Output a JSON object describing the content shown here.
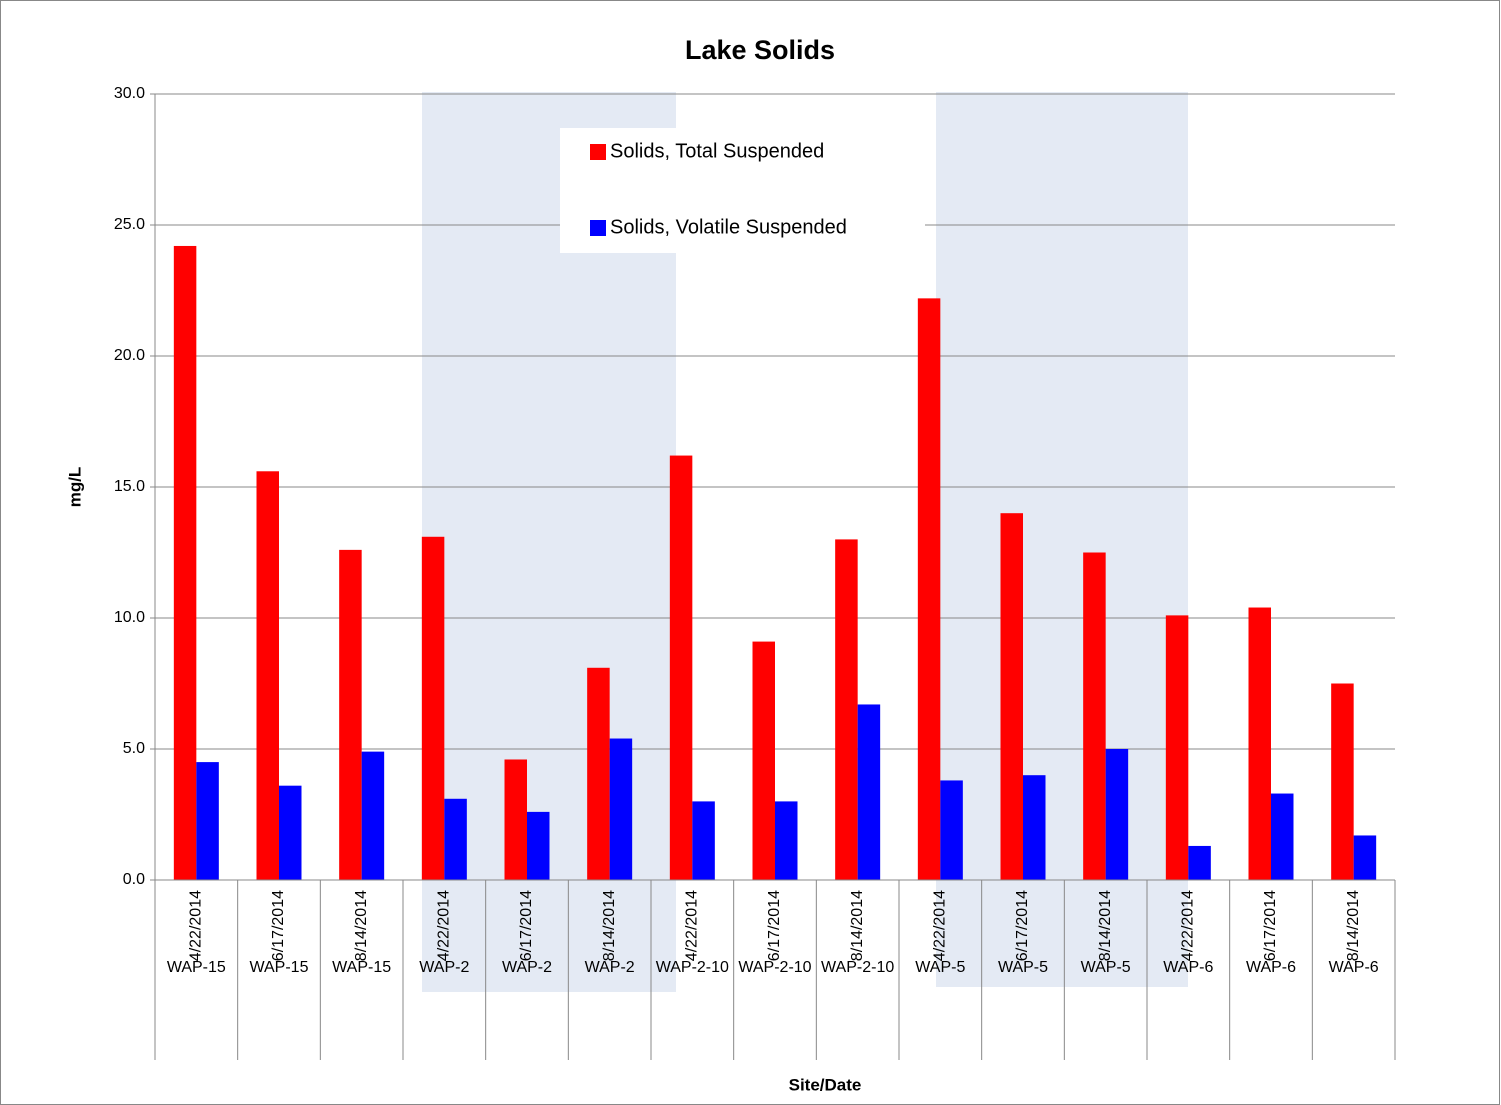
{
  "chart_data": {
    "type": "bar",
    "title": "Lake Solids",
    "y_label": "mg/L",
    "x_label": "Site/Date",
    "categories": [
      "4/22/2014",
      "6/17/2014",
      "8/14/2014",
      "4/22/2014",
      "6/17/2014",
      "8/14/2014",
      "4/22/2014",
      "6/17/2014",
      "8/14/2014",
      "4/22/2014",
      "6/17/2014",
      "8/14/2014",
      "4/22/2014",
      "6/17/2014",
      "8/14/2014"
    ],
    "groups": [
      "WAP-15",
      "WAP-15",
      "WAP-15",
      "WAP-2",
      "WAP-2",
      "WAP-2",
      "WAP-2-10",
      "WAP-2-10",
      "WAP-2-10",
      "WAP-5",
      "WAP-5",
      "WAP-5",
      "WAP-6",
      "WAP-6",
      "WAP-6"
    ],
    "series": [
      {
        "name": "Solids, Total Suspended",
        "color": "#ff0000",
        "values": [
          24.2,
          15.6,
          12.6,
          13.1,
          4.6,
          8.1,
          16.2,
          9.1,
          13.0,
          22.2,
          14.0,
          12.5,
          10.1,
          10.4,
          7.5
        ]
      },
      {
        "name": "Solids, Volatile Suspended",
        "color": "#0000ff",
        "values": [
          4.5,
          3.6,
          4.9,
          3.1,
          2.6,
          5.4,
          3.0,
          3.0,
          6.7,
          3.8,
          4.0,
          5.0,
          1.3,
          3.3,
          1.7
        ]
      }
    ],
    "ylim": [
      0,
      30
    ],
    "yticks": [
      {
        "value": 0,
        "label": "0.0"
      },
      {
        "value": 5,
        "label": "5.0"
      },
      {
        "value": 10,
        "label": "10.0"
      },
      {
        "value": 15,
        "label": "15.0"
      },
      {
        "value": 20,
        "label": "20.0"
      },
      {
        "value": 25,
        "label": "25.0"
      },
      {
        "value": 30,
        "label": "30.0"
      }
    ],
    "grid": true
  }
}
